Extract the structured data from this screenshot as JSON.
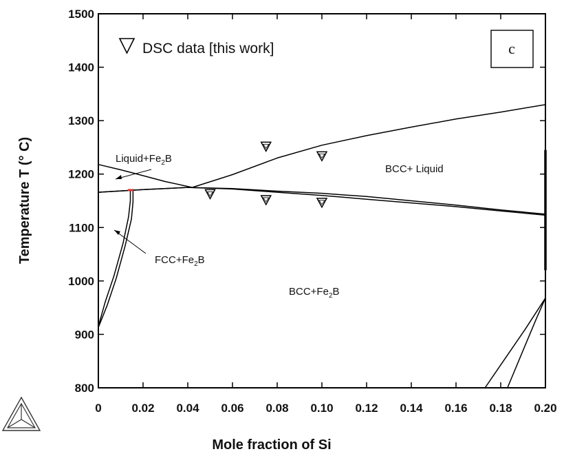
{
  "chart_data": {
    "type": "line",
    "xlabel": "Mole fraction of Si",
    "ylabel": "Temperature T (° C)",
    "xlim": [
      0,
      0.2
    ],
    "ylim": [
      800,
      1500
    ],
    "x_tick_labels": [
      "0",
      "0.02",
      "0.04",
      "0.06",
      "0.08",
      "0.10",
      "0.12",
      "0.14",
      "0.16",
      "0.18",
      "0.20"
    ],
    "y_tick_labels": [
      "800",
      "900",
      "1000",
      "1100",
      "1200",
      "1300",
      "1400",
      "1500"
    ],
    "panel_label": "c",
    "legend": {
      "symbol": "down-triangle",
      "label": "DSC data [this work]",
      "position": "top-left"
    },
    "region_labels": {
      "liquid_fe2b": {
        "main": "Liquid+Fe",
        "sub": "2",
        "tail": "B"
      },
      "bcc_liquid": {
        "main": "BCC+ Liquid"
      },
      "fcc_fe2b": {
        "main": "FCC+Fe",
        "sub": "2",
        "tail": "B"
      },
      "bcc_fe2b": {
        "main": "BCC+Fe",
        "sub": "2",
        "tail": "B"
      }
    },
    "series": [
      {
        "x": [
          0,
          0.01,
          0.02,
          0.03,
          0.042
        ],
        "y": [
          1218,
          1208,
          1197,
          1186,
          1175
        ]
      },
      {
        "x": [
          0.042,
          0.06,
          0.08,
          0.1,
          0.12,
          0.14,
          0.16,
          0.18,
          0.2
        ],
        "y": [
          1175,
          1199,
          1230,
          1254,
          1272,
          1288,
          1303,
          1316,
          1330
        ]
      },
      {
        "x": [
          0,
          0.02,
          0.04,
          0.06,
          0.08,
          0.1,
          0.12,
          0.14,
          0.16,
          0.18,
          0.2
        ],
        "y": [
          1166,
          1171,
          1175,
          1173,
          1168,
          1164,
          1158,
          1150,
          1142,
          1133,
          1125
        ]
      },
      {
        "x": [
          0,
          0.02,
          0.04,
          0.06,
          0.08,
          0.1,
          0.12,
          0.14,
          0.16,
          0.18,
          0.2
        ],
        "y": [
          1166,
          1171,
          1175,
          1172,
          1166,
          1160,
          1153,
          1146,
          1139,
          1131,
          1123
        ]
      },
      {
        "x": [
          0,
          0.003,
          0.007,
          0.011,
          0.0135,
          0.0143,
          0.0143
        ],
        "y": [
          915,
          960,
          1010,
          1070,
          1120,
          1150,
          1172
        ]
      },
      {
        "x": [
          0,
          0.004,
          0.008,
          0.012,
          0.0148,
          0.0155,
          0.0155
        ],
        "y": [
          913,
          955,
          1005,
          1066,
          1116,
          1148,
          1172
        ]
      },
      {
        "x": [
          0.173,
          0.182,
          0.191,
          0.2
        ],
        "y": [
          800,
          855,
          910,
          968
        ]
      },
      {
        "x": [
          0.183,
          0.19,
          0.196,
          0.2
        ],
        "y": [
          800,
          870,
          930,
          968
        ]
      },
      {
        "x": [
          0.2,
          0.2
        ],
        "y": [
          1020,
          1245
        ]
      }
    ],
    "dsc_points": [
      {
        "x": 0.05,
        "y": 1163
      },
      {
        "x": 0.075,
        "y": 1252
      },
      {
        "x": 0.075,
        "y": 1152
      },
      {
        "x": 0.1,
        "y": 1234
      },
      {
        "x": 0.1,
        "y": 1147
      }
    ]
  }
}
